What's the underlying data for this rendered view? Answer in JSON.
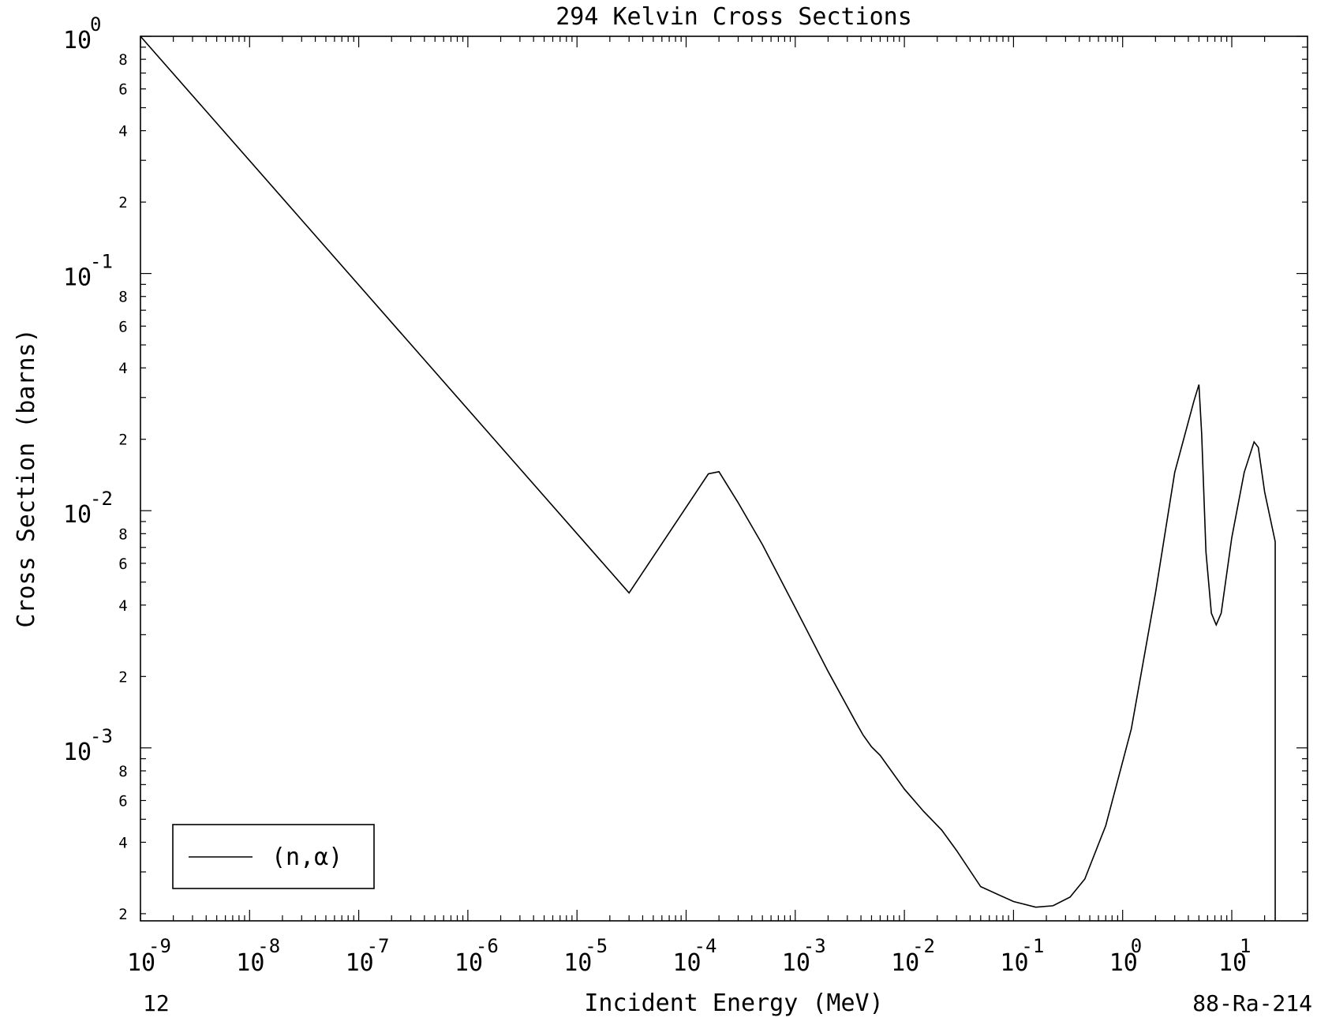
{
  "chart_data": {
    "type": "line",
    "title": "294 Kelvin Cross Sections",
    "xlabel": "Incident Energy (MeV)",
    "ylabel": "Cross Section (barns)",
    "x_scale": "log",
    "y_scale": "log",
    "xlim": [
      1e-09,
      20
    ],
    "ylim": [
      0.0002,
      1.0
    ],
    "grid": false,
    "legend_position": "bottom-left",
    "legend": [
      {
        "label": "(n,α)"
      }
    ],
    "footer_left": "12",
    "footer_right": "88-Ra-214",
    "x_ticks": [
      {
        "base": "10",
        "exp": "-9",
        "value": 1e-09
      },
      {
        "base": "10",
        "exp": "-8",
        "value": 1e-08
      },
      {
        "base": "10",
        "exp": "-7",
        "value": 1e-07
      },
      {
        "base": "10",
        "exp": "-6",
        "value": 1e-06
      },
      {
        "base": "10",
        "exp": "-5",
        "value": 1e-05
      },
      {
        "base": "10",
        "exp": "-4",
        "value": 0.0001
      },
      {
        "base": "10",
        "exp": "-3",
        "value": 0.001
      },
      {
        "base": "10",
        "exp": "-2",
        "value": 0.01
      },
      {
        "base": "10",
        "exp": "-1",
        "value": 0.1
      },
      {
        "base": "10",
        "exp": "0",
        "value": 1
      },
      {
        "base": "10",
        "exp": "1",
        "value": 10
      }
    ],
    "y_ticks": [
      {
        "base": "10",
        "exp": "0",
        "value": 1
      },
      {
        "base": "10",
        "exp": "-1",
        "value": 0.1
      },
      {
        "base": "10",
        "exp": "-2",
        "value": 0.01
      },
      {
        "base": "10",
        "exp": "-3",
        "value": 0.001
      }
    ],
    "y_minor_labels": [
      "8",
      "6",
      "4",
      "2"
    ],
    "series": [
      {
        "name": "(n,α)",
        "points": [
          [
            1e-09,
            1.0
          ],
          [
            3e-05,
            0.0045
          ],
          [
            0.00016,
            0.0143
          ],
          [
            0.0002,
            0.0146
          ],
          [
            0.0003,
            0.0108
          ],
          [
            0.0005,
            0.0072
          ],
          [
            0.001,
            0.0039
          ],
          [
            0.002,
            0.0021
          ],
          [
            0.0036,
            0.00128
          ],
          [
            0.0042,
            0.00113
          ],
          [
            0.005,
            0.00101
          ],
          [
            0.006,
            0.00093
          ],
          [
            0.01,
            0.00067
          ],
          [
            0.015,
            0.00054
          ],
          [
            0.022,
            0.00045
          ],
          [
            0.03,
            0.00037
          ],
          [
            0.05,
            0.00026
          ],
          [
            0.1,
            0.000225
          ],
          [
            0.16,
            0.000213
          ],
          [
            0.23,
            0.000216
          ],
          [
            0.33,
            0.000235
          ],
          [
            0.45,
            0.00028
          ],
          [
            0.7,
            0.00047
          ],
          [
            1.2,
            0.0012
          ],
          [
            2.0,
            0.0045
          ],
          [
            3.0,
            0.0145
          ],
          [
            4.5,
            0.029
          ],
          [
            5.0,
            0.034
          ],
          [
            5.3,
            0.021
          ],
          [
            5.8,
            0.0067
          ],
          [
            6.5,
            0.0037
          ],
          [
            7.2,
            0.0033
          ],
          [
            8.0,
            0.0037
          ],
          [
            10.0,
            0.0077
          ],
          [
            13.0,
            0.0145
          ],
          [
            16.0,
            0.0195
          ],
          [
            17.5,
            0.0185
          ],
          [
            20.0,
            0.012
          ],
          [
            25.0,
            0.0074
          ]
        ]
      }
    ]
  }
}
